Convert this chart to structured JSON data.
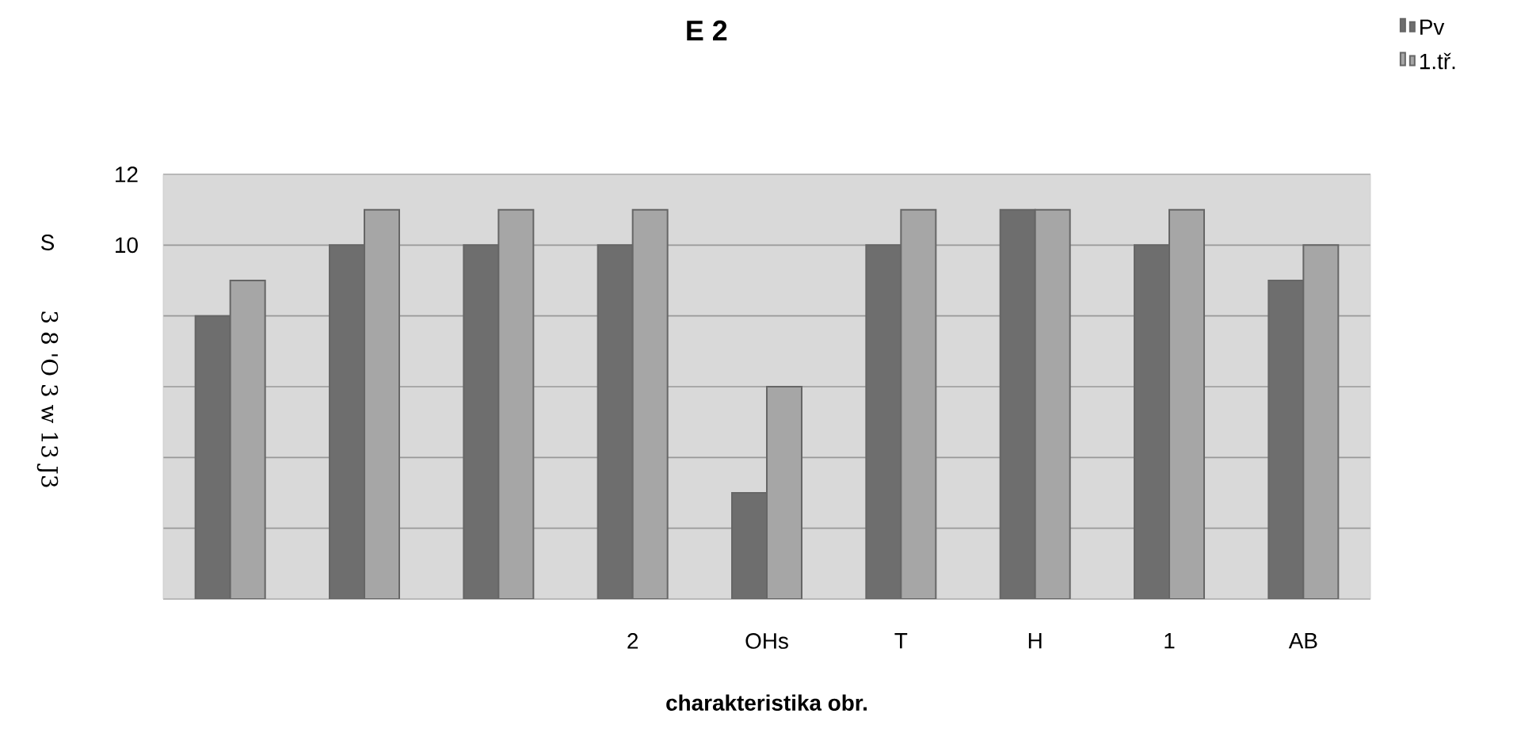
{
  "chart_data": {
    "type": "bar",
    "title": "E 2",
    "xlabel": "charakteristika obr.",
    "ylabel": "S",
    "annotations": [
      "3 8 'O 3 w 13 J3"
    ],
    "categories": [
      null,
      null,
      null,
      "2",
      "OHs",
      "T",
      "H",
      "1",
      "AB"
    ],
    "series": [
      {
        "name": "Pv",
        "color": "#6e6e6e",
        "values": [
          8,
          10,
          10,
          10,
          3,
          10,
          11,
          10,
          9
        ]
      },
      {
        "name": "1.tř.",
        "color": "#a6a6a6",
        "values": [
          9,
          11,
          11,
          11,
          6,
          11,
          11,
          11,
          10
        ]
      }
    ],
    "ylim": [
      0,
      12
    ],
    "yticks": [
      {
        "value": 0,
        "label": null
      },
      {
        "value": 2,
        "label": null
      },
      {
        "value": 4,
        "label": null
      },
      {
        "value": 6,
        "label": null
      },
      {
        "value": 8,
        "label": null
      },
      10,
      12
    ],
    "grid": "y",
    "legend": "top right"
  }
}
